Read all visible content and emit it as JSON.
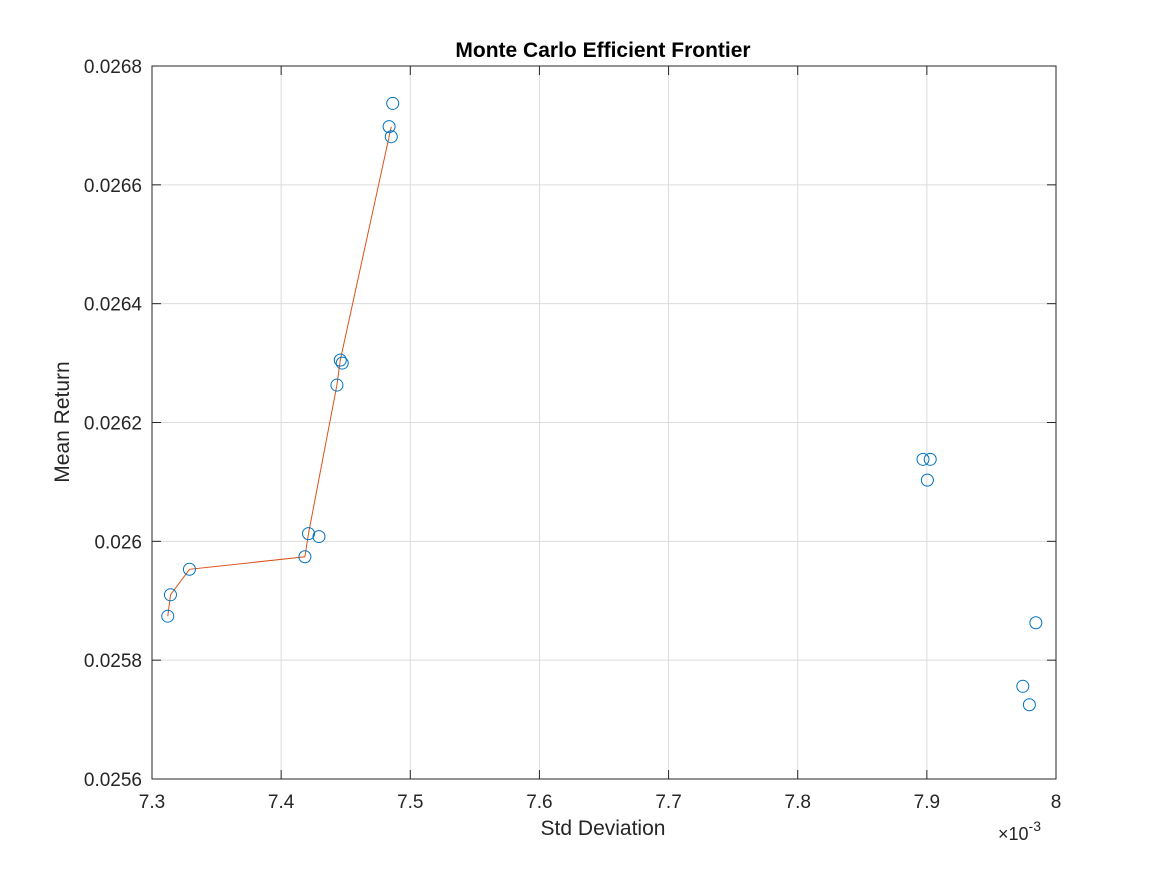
{
  "chart_data": {
    "type": "scatter",
    "title": "Monte Carlo Efficient Frontier",
    "xlabel": "Std Deviation",
    "ylabel": "Mean Return",
    "x_exponent": {
      "prefix": "×10",
      "power": "-3"
    },
    "xlim": [
      7.3,
      8.0
    ],
    "ylim": [
      0.0256,
      0.0268
    ],
    "x_ticks": [
      7.3,
      7.4,
      7.5,
      7.6,
      7.7,
      7.8,
      7.9,
      8.0
    ],
    "x_tick_labels": [
      "7.3",
      "7.4",
      "7.5",
      "7.6",
      "7.7",
      "7.8",
      "7.9",
      "8"
    ],
    "y_ticks": [
      0.0256,
      0.0258,
      0.026,
      0.0262,
      0.0264,
      0.0266,
      0.0268
    ],
    "y_tick_labels": [
      "0.0256",
      "0.0258",
      "0.026",
      "0.0262",
      "0.0264",
      "0.0266",
      "0.0268"
    ],
    "grid": true,
    "series": [
      {
        "type": "scatter",
        "marker": "circle-open",
        "color": "#0072BD",
        "x": [
          7.3122,
          7.3143,
          7.329,
          7.4184,
          7.4212,
          7.4293,
          7.4432,
          7.4458,
          7.4473,
          7.4836,
          7.4853,
          7.4864,
          7.897,
          7.9004,
          7.9026,
          7.9743,
          7.9794,
          7.9844
        ],
        "y": [
          0.025874,
          0.02591,
          0.025953,
          0.025974,
          0.026013,
          0.026008,
          0.026263,
          0.026305,
          0.0263,
          0.026698,
          0.026681,
          0.026737,
          0.026138,
          0.026103,
          0.026138,
          0.025756,
          0.025725,
          0.025863
        ]
      },
      {
        "type": "line",
        "color": "#D95319",
        "x": [
          7.3122,
          7.3143,
          7.329,
          7.4184,
          7.4212,
          7.4432,
          7.4458,
          7.4853
        ],
        "y": [
          0.025874,
          0.02591,
          0.025953,
          0.025974,
          0.026013,
          0.026263,
          0.026305,
          0.026698
        ]
      }
    ]
  }
}
